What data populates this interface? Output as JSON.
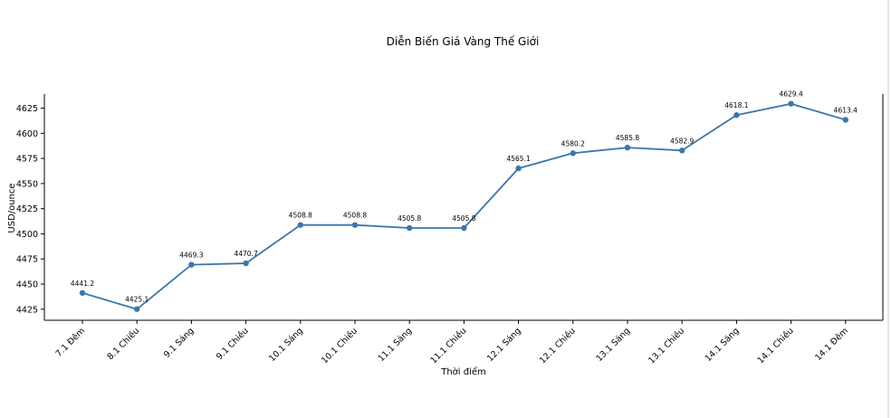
{
  "chart_data": {
    "type": "line",
    "title": "Diễn Biến Giá Vàng Thế Giới",
    "xlabel": "Thời điểm",
    "ylabel": "USD/ounce",
    "categories": [
      "7.1 Đêm",
      "8.1 Chiều",
      "9.1 Sáng",
      "9.1 Chiều",
      "10.1 Sáng",
      "10.1 Chiều",
      "11.1 Sáng",
      "11.1 Chiều",
      "12.1 Sáng",
      "12.1 Chiều",
      "13.1 Sáng",
      "13.1 Chiều",
      "14.1 Sáng",
      "14.1 Chiều",
      "14.1 Đêm"
    ],
    "values": [
      4441.2,
      4425.1,
      4469.3,
      4470.7,
      4508.8,
      4508.8,
      4505.8,
      4505.8,
      4565.1,
      4580.2,
      4585.8,
      4582.9,
      4618.1,
      4629.4,
      4613.4
    ],
    "data_labels": [
      "4441.2",
      "4425.1",
      "4469.3",
      "4470.7",
      "4508.8",
      "4508.8",
      "4505.8",
      "4505.8",
      "4565.1",
      "4580.2",
      "4585.8",
      "4582.9",
      "4618.1",
      "4629.4",
      "4613.4"
    ],
    "yticks": [
      4425,
      4450,
      4475,
      4500,
      4525,
      4550,
      4575,
      4600,
      4625
    ],
    "ylim": [
      4414,
      4639
    ],
    "line_color": "#3d76ab",
    "grid": false,
    "legend": "none"
  }
}
